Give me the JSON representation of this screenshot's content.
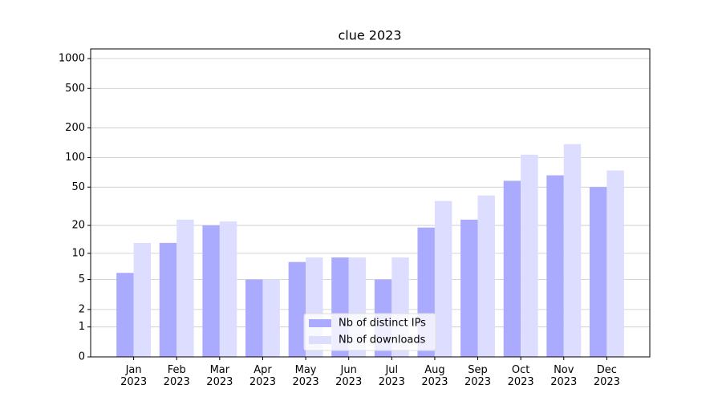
{
  "chart_data": {
    "type": "bar",
    "title": "clue 2023",
    "categories": [
      "Jan 2023",
      "Feb 2023",
      "Mar 2023",
      "Apr 2023",
      "May 2023",
      "Jun 2023",
      "Jul 2023",
      "Aug 2023",
      "Sep 2023",
      "Oct 2023",
      "Nov 2023",
      "Dec 2023"
    ],
    "series": [
      {
        "name": "Nb of distinct IPs",
        "color": "#aaaaff",
        "values": [
          6,
          13,
          20,
          5,
          8,
          9,
          5,
          19,
          23,
          58,
          66,
          50
        ]
      },
      {
        "name": "Nb of downloads",
        "color": "#ddddff",
        "values": [
          13,
          23,
          22,
          5,
          9,
          9,
          9,
          36,
          41,
          107,
          137,
          74
        ]
      }
    ],
    "yscale": "log1p",
    "ylim": [
      0,
      1250
    ],
    "yticks": [
      0,
      1,
      2,
      5,
      10,
      20,
      50,
      100,
      200,
      500,
      1000
    ],
    "grid": true,
    "legend": "lower center"
  }
}
